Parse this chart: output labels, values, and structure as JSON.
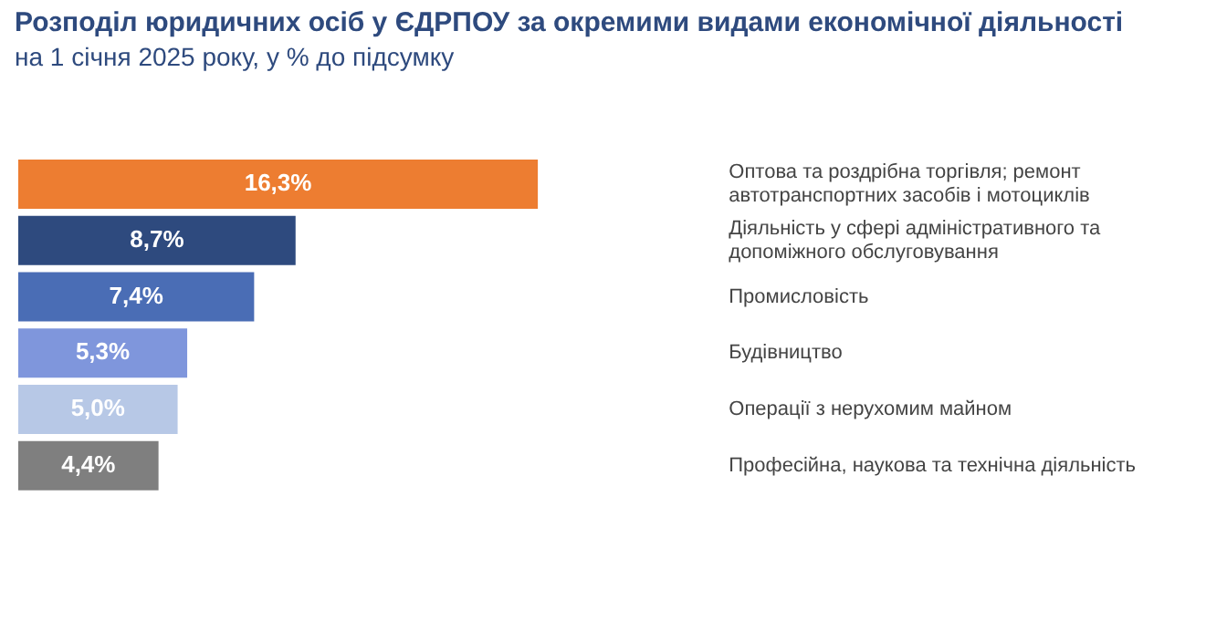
{
  "chart_data": {
    "type": "bar",
    "orientation": "horizontal",
    "title": "Розподіл юридичних осіб у ЄДРПОУ за окремими видами економічної діяльності",
    "subtitle": "на 1 січня 2025 року, у % до підсумку",
    "categories": [
      "Оптова та роздрібна торгівля; ремонт автотранспортних засобів і мотоциклів",
      "Діяльність у сфері адміністративного та допоміжного обслуговування",
      "Промисловість",
      "Будівництво",
      "Операції з нерухомим майном",
      "Професійна, наукова та технічна діяльність"
    ],
    "values": [
      16.3,
      8.7,
      7.4,
      5.3,
      5.0,
      4.4
    ],
    "colors": [
      "#ed7d31",
      "#2e4a7e",
      "#4a6db5",
      "#7f96dc",
      "#b7c8e6",
      "#7f7f7f"
    ],
    "value_labels": [
      "16,3%",
      "8,7%",
      "7,4%",
      "5,3%",
      "5,0%",
      "4,4%"
    ],
    "tick_labels": "y"
  }
}
